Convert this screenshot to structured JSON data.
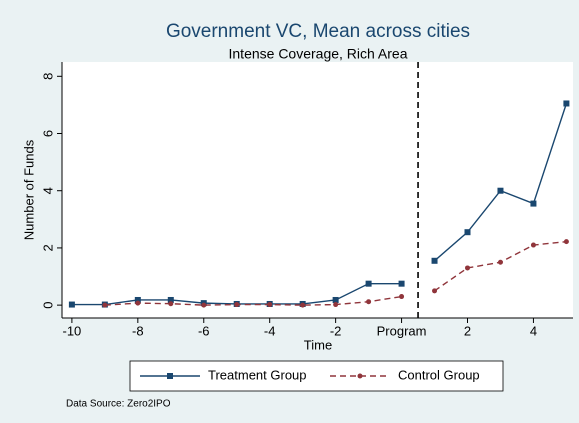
{
  "chart_data": {
    "type": "line",
    "title": "Government VC, Mean across cities",
    "subtitle": "Intense Coverage, Rich Area",
    "x_label": "Time",
    "y_label": "Number of Funds",
    "note": "Data Source: Zero2IPO",
    "x": [
      -10,
      -9,
      -8,
      -7,
      -6,
      -5,
      -4,
      -3,
      -2,
      -1,
      0,
      0.5,
      1,
      2,
      3,
      4,
      5
    ],
    "series": [
      {
        "name": "Treatment Group",
        "color": "#1a476f",
        "dash": false,
        "marker": "square",
        "values": [
          0.02,
          0.02,
          0.18,
          0.18,
          0.07,
          0.04,
          0.04,
          0.04,
          0.18,
          0.75,
          0.75,
          null,
          1.55,
          2.55,
          4.0,
          3.55,
          7.05
        ]
      },
      {
        "name": "Control Group",
        "color": "#90353b",
        "dash": true,
        "marker": "circle",
        "values": [
          null,
          0.0,
          0.07,
          0.05,
          0.0,
          0.02,
          0.02,
          0.0,
          0.02,
          0.12,
          0.3,
          null,
          0.5,
          1.3,
          1.5,
          2.1,
          2.22
        ]
      }
    ],
    "vline": 0.5,
    "xlim": [
      -10.3,
      5.2
    ],
    "ylim": [
      -0.45,
      8.5
    ],
    "xticks": [
      -10,
      -8,
      -6,
      -4,
      -2,
      {
        "value": 0,
        "label": "Program"
      },
      2,
      4
    ],
    "yticks": [
      0,
      2,
      4,
      6,
      8
    ],
    "grid": false,
    "legend": "bottom"
  }
}
